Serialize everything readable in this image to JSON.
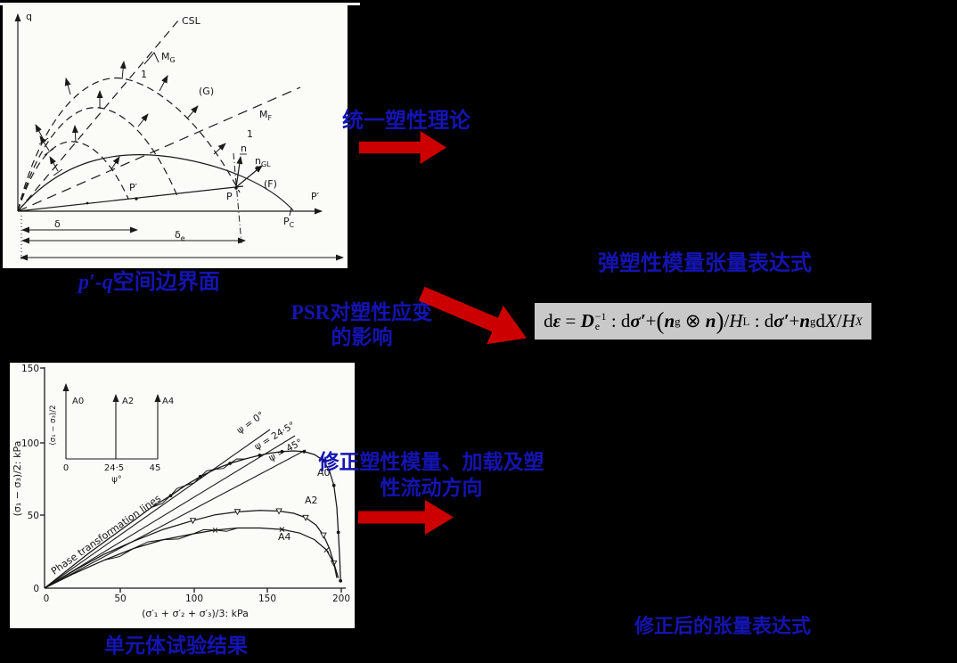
{
  "slide": {
    "bg": "#000000",
    "colors": {
      "label_blue": "#1414B2",
      "arrow_red": "#CC0000",
      "formula_bg": "#C9C9C9",
      "panel_bg": "#FBFBF8"
    },
    "labels": {
      "pq_caption_math": "p′-q",
      "pq_caption_cjk": "空间边界面",
      "unified_theory": "统一塑性理论",
      "tensor_expression": "弹塑性模量张量表达式",
      "psr_line1": "PSR对塑性应变",
      "psr_line2": "的影响",
      "modified_line1": "修正塑性模量、加载及塑",
      "modified_line2": "性流动方向",
      "element_test": "单元体试验结果",
      "modified_tensor": "修正后的张量表达式"
    }
  },
  "formula": {
    "plain": "dε = De−1 : dσ′+(ng ⊗ n)/HL : dσ′+ngdX/HX",
    "parts": [
      {
        "t": "d"
      },
      {
        "t": "ε",
        "s": "bi"
      },
      {
        "t": " = "
      },
      {
        "t": "D",
        "s": "bi"
      },
      {
        "stack": {
          "sup": "−1",
          "sub": "e"
        }
      },
      {
        "t": " : d"
      },
      {
        "t": "σ′",
        "s": "bi"
      },
      {
        "t": "+"
      },
      {
        "t": "(",
        "s": "big"
      },
      {
        "t": "n",
        "s": "bi"
      },
      {
        "t": "g",
        "s": "sub"
      },
      {
        "t": " ⊗ "
      },
      {
        "t": "n",
        "s": "bi"
      },
      {
        "t": ")",
        "s": "big"
      },
      {
        "t": "/"
      },
      {
        "t": "H",
        "s": "i"
      },
      {
        "t": "L",
        "s": "sub"
      },
      {
        "t": " : d"
      },
      {
        "t": "σ′",
        "s": "bi"
      },
      {
        "t": "+"
      },
      {
        "t": "n",
        "s": "bi"
      },
      {
        "t": "g",
        "s": "sub"
      },
      {
        "t": "d"
      },
      {
        "t": "X",
        "s": "i"
      },
      {
        "t": "/"
      },
      {
        "t": "H",
        "s": "i"
      },
      {
        "t": "X",
        "s": "subi"
      }
    ]
  },
  "chart_data": [
    {
      "type": "line",
      "title": "p′-q 空间边界面 (bounding surfaces in p′-q space, scanned schematic)",
      "xlabel": "P′",
      "ylabel": "q",
      "grid": false,
      "lines": [
        {
          "name": "CSL",
          "style": "dashed",
          "slope_marker": "MG : 1"
        },
        {
          "name": "MF line",
          "style": "dashed",
          "slope_marker": "MF : 1"
        }
      ],
      "series": [
        {
          "name": "(F) bounding surface",
          "style": "solid",
          "shape": "arc from origin peaking then meeting x-axis at PC"
        },
        {
          "name": "(G) plastic potential surfaces",
          "style": "dashed",
          "count": 3,
          "shape": "nested arcs from origin"
        }
      ],
      "points": [
        "P′ (on radial stress path)",
        "P (on surface F)",
        "PC (on x-axis)"
      ],
      "vectors": [
        "n (normal at P)",
        "nGL (at P)"
      ],
      "dimension_arrows": [
        "δ",
        "δe",
        "full-width"
      ],
      "labels": {
        "q": "q",
        "x_axis": "P′",
        "csl": "CSL",
        "mg_main": "M",
        "mg_sub": "G",
        "mg_one": "1",
        "mf_main": "M",
        "mf_sub": "F",
        "mf_one": "1",
        "g_curve": "(G)",
        "f_curve": "(F)",
        "n": "n",
        "ngl_main": "n",
        "ngl_sub": "GL",
        "p_prime_point": "P′",
        "p_point": "P",
        "pc_main": "P",
        "pc_sub": "C",
        "delta": "δ",
        "delta_e_main": "δ",
        "delta_e_sub": "e"
      }
    },
    {
      "type": "line",
      "title": "单元体试验结果 (element test results)",
      "xlabel": "(σ′₁ + σ′₂ + σ′₃)/3: kPa",
      "ylabel": "(σ₁ − σ₃)/2: kPa",
      "xlim": [
        0,
        200
      ],
      "ylim": [
        0,
        150
      ],
      "xticks": [
        "0",
        "50",
        "100",
        "150",
        "200"
      ],
      "yticks": [
        "150",
        "100",
        "50",
        "0"
      ],
      "annotation": "Phase transformation lines",
      "psi_lines": [
        {
          "label": "ψ = 0°",
          "end_kpa": [
            152,
            108
          ]
        },
        {
          "label": "ψ = 24·5°",
          "end_kpa": [
            169,
            104
          ]
        },
        {
          "label": "ψ = 45°",
          "end_kpa": [
            176,
            94
          ]
        }
      ],
      "series": [
        {
          "name": "A0",
          "marker": "dot",
          "label_pos": [
            345,
            127
          ],
          "x": [
            0,
            15,
            30,
            45,
            60,
            72,
            85,
            95,
            105,
            115,
            125,
            135,
            145,
            152,
            160,
            168,
            175,
            182,
            188,
            192,
            195,
            197,
            198,
            199,
            199.5
          ],
          "y": [
            0,
            12,
            24,
            35,
            46,
            55,
            63,
            70,
            76,
            81,
            85,
            88,
            90.5,
            92,
            93,
            93.5,
            93,
            91,
            87,
            80,
            70,
            55,
            38,
            20,
            5
          ]
        },
        {
          "name": "A2",
          "marker": "tri",
          "label_pos": [
            331,
            158
          ],
          "x": [
            0,
            20,
            40,
            60,
            80,
            100,
            115,
            130,
            145,
            158,
            168,
            176,
            183,
            188,
            192,
            195,
            197
          ],
          "y": [
            0,
            12,
            23,
            32,
            40,
            46,
            50,
            52,
            53,
            52.5,
            51,
            48,
            43,
            36,
            27,
            17,
            7
          ]
        },
        {
          "name": "A4",
          "marker": "x",
          "label_pos": [
            301,
            199
          ],
          "x": [
            0,
            20,
            40,
            60,
            80,
            100,
            115,
            130,
            145,
            160,
            172,
            182,
            190,
            195,
            198
          ],
          "y": [
            0,
            10,
            19,
            27,
            33,
            37,
            39.5,
            41,
            41,
            40,
            37.5,
            33,
            26,
            17,
            7
          ]
        }
      ],
      "inset": {
        "ylabel": "(σ₁ − σ₃)/2",
        "xlabel": "ψ°",
        "xticks": [
          "0",
          "24·5",
          "45"
        ],
        "arrows": [
          "A0",
          "A2",
          "A4"
        ]
      }
    }
  ]
}
